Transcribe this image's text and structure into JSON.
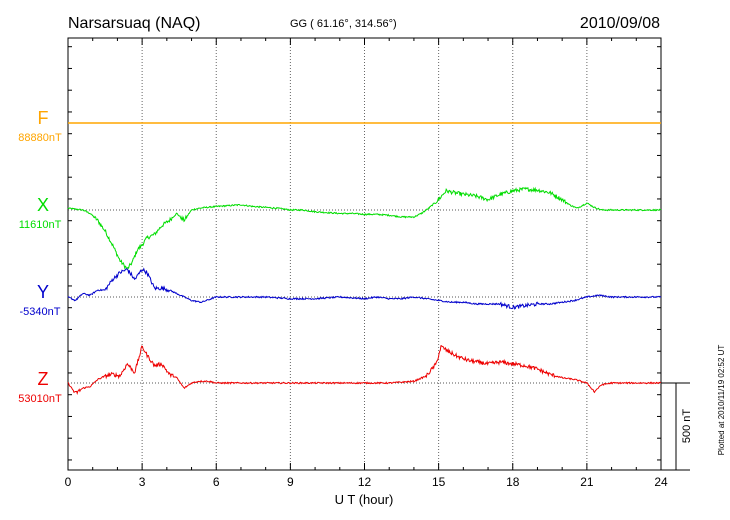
{
  "header": {
    "station": "Narsarsuaq (NAQ)",
    "coords": "GG ( 61.16°, 314.56°)",
    "date": "2010/09/08"
  },
  "footer": {
    "plotted": "Plotted at 2010/11/19 02:52 UT"
  },
  "scale_bar": {
    "label": "500 nT",
    "value_nT": 500
  },
  "chart_data": {
    "type": "line",
    "xlabel": "U T (hour)",
    "xlim": [
      0,
      24
    ],
    "x_ticks": [
      0,
      3,
      6,
      9,
      12,
      15,
      18,
      21,
      24
    ],
    "x_tick_labels": [
      "0",
      "3",
      "6",
      "9",
      "12",
      "15",
      "18",
      "21",
      "24"
    ],
    "grid": true,
    "series": [
      {
        "name": "F",
        "baseline_label": "88880nT",
        "baseline_nT": 88880,
        "color": "#ffa500",
        "x": [
          0,
          24
        ],
        "values": [
          0,
          0
        ]
      },
      {
        "name": "X",
        "baseline_label": "11610nT",
        "baseline_nT": 11610,
        "color": "#00dd00",
        "x": [
          0,
          0.3,
          0.6,
          0.9,
          1.2,
          1.5,
          1.8,
          2.1,
          2.4,
          2.6,
          2.8,
          3.0,
          3.2,
          3.5,
          3.8,
          4.1,
          4.4,
          4.7,
          5.0,
          5.3,
          5.6,
          6.0,
          6.5,
          7.0,
          7.5,
          8.0,
          8.5,
          9.0,
          9.5,
          10.0,
          10.5,
          11.0,
          11.5,
          12.0,
          12.5,
          13.0,
          13.5,
          14.0,
          14.3,
          14.6,
          15.0,
          15.3,
          15.6,
          16.0,
          16.5,
          17.0,
          17.5,
          18.0,
          18.5,
          19.0,
          19.5,
          20.0,
          20.3,
          20.6,
          21.0,
          21.3,
          21.6,
          22.0,
          22.5,
          23.0,
          23.5,
          24.0
        ],
        "values": [
          10,
          5,
          0,
          -20,
          -60,
          -120,
          -200,
          -290,
          -340,
          -300,
          -230,
          -200,
          -160,
          -140,
          -90,
          -60,
          -20,
          -60,
          0,
          10,
          15,
          20,
          25,
          30,
          20,
          15,
          10,
          0,
          0,
          -10,
          -15,
          -20,
          -20,
          -25,
          -25,
          -30,
          -40,
          -40,
          -20,
          10,
          60,
          110,
          100,
          90,
          80,
          60,
          90,
          110,
          120,
          115,
          100,
          60,
          30,
          10,
          40,
          15,
          0,
          0,
          0,
          0,
          0,
          0
        ]
      },
      {
        "name": "Y",
        "baseline_label": "-5340nT",
        "baseline_nT": -5340,
        "color": "#0000cc",
        "x": [
          0,
          0.3,
          0.6,
          0.9,
          1.2,
          1.5,
          1.8,
          2.1,
          2.4,
          2.7,
          3.0,
          3.2,
          3.5,
          3.8,
          4.1,
          4.4,
          4.7,
          5.0,
          5.4,
          6.0,
          6.5,
          7.0,
          7.5,
          8.0,
          9.0,
          10.0,
          11.0,
          12.0,
          12.5,
          13.0,
          13.5,
          14.0,
          14.5,
          15.0,
          15.5,
          16.0,
          16.5,
          17.0,
          17.5,
          18.0,
          18.5,
          19.0,
          19.5,
          20.0,
          20.5,
          21.0,
          21.5,
          22.0,
          22.5,
          23.0,
          23.5,
          24.0
        ],
        "values": [
          0,
          -20,
          20,
          10,
          40,
          40,
          100,
          140,
          160,
          100,
          160,
          140,
          50,
          50,
          40,
          20,
          0,
          -20,
          -30,
          0,
          0,
          0,
          0,
          0,
          -10,
          -10,
          0,
          -10,
          0,
          -10,
          -10,
          0,
          -10,
          -20,
          -30,
          -30,
          -40,
          -40,
          -40,
          -60,
          -50,
          -40,
          -40,
          -30,
          -20,
          0,
          10,
          0,
          0,
          0,
          0,
          0
        ]
      },
      {
        "name": "Z",
        "baseline_label": "53010nT",
        "baseline_nT": 53010,
        "color": "#ee0000",
        "x": [
          0,
          0.3,
          0.6,
          0.9,
          1.2,
          1.5,
          1.8,
          2.1,
          2.4,
          2.7,
          3.0,
          3.2,
          3.5,
          3.8,
          4.1,
          4.4,
          4.7,
          5.0,
          5.3,
          5.7,
          6.0,
          6.5,
          7.0,
          8.0,
          9.0,
          10.0,
          11.0,
          12.0,
          13.0,
          14.0,
          14.5,
          14.9,
          15.1,
          15.4,
          15.8,
          16.2,
          16.6,
          17.0,
          17.5,
          18.0,
          18.5,
          19.0,
          19.5,
          20.0,
          20.5,
          21.0,
          21.3,
          21.6,
          22.0,
          22.5,
          23.0,
          23.5,
          24.0
        ],
        "values": [
          0,
          -60,
          -30,
          -20,
          20,
          40,
          50,
          40,
          110,
          60,
          210,
          160,
          100,
          110,
          50,
          30,
          -30,
          0,
          10,
          10,
          0,
          0,
          0,
          0,
          0,
          0,
          0,
          0,
          0,
          10,
          40,
          110,
          210,
          180,
          150,
          130,
          120,
          110,
          120,
          110,
          100,
          80,
          50,
          30,
          20,
          0,
          -50,
          -10,
          0,
          0,
          0,
          0,
          0
        ]
      }
    ]
  }
}
